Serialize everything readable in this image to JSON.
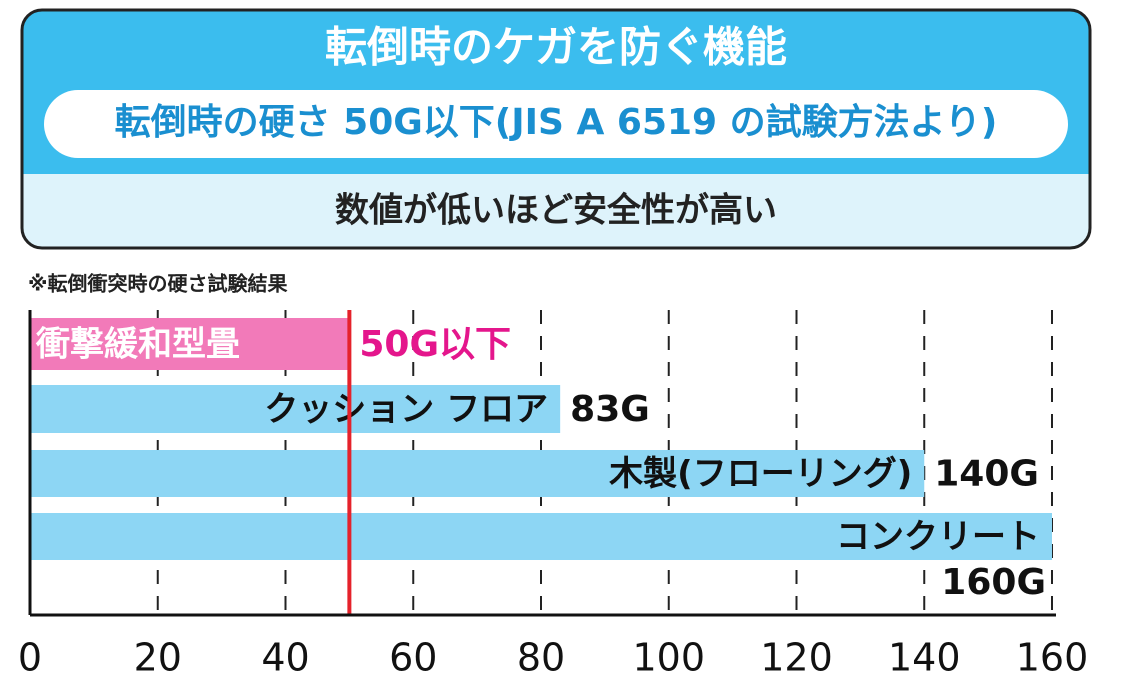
{
  "header": {
    "title": "転倒時のケガを防ぐ機能",
    "subtitle": "転倒時の硬さ 50G以下(JIS A 6519 の試験方法より)",
    "note": "数値が低いほど安全性が高い"
  },
  "chart_data": {
    "type": "bar",
    "orientation": "horizontal",
    "title": "※転倒衝突時の硬さ試験結果",
    "categories": [
      "衝撃緩和型畳",
      "クッション フロア",
      "木製(フローリング)",
      "コンクリート"
    ],
    "values": [
      50,
      83,
      140,
      160
    ],
    "value_labels": [
      "50G以下",
      "83G",
      "140G",
      "160G"
    ],
    "colors": [
      "#f27ab9",
      "#8dd6f4",
      "#8dd6f4",
      "#8dd6f4"
    ],
    "xlim": [
      0,
      160
    ],
    "xticks": [
      0,
      20,
      40,
      60,
      80,
      100,
      120,
      140,
      160
    ],
    "grid": true,
    "reference_line": {
      "value": 50,
      "color": "#e5222b"
    }
  }
}
